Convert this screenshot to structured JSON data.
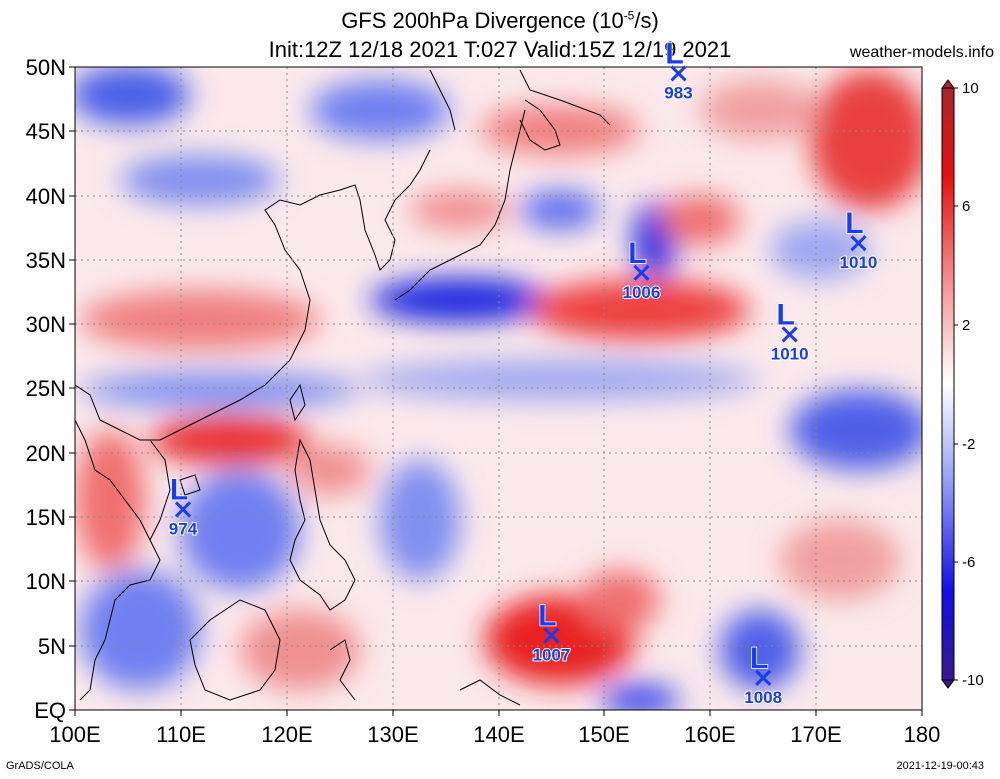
{
  "header": {
    "title_main": "GFS 200hPa Divergence (10",
    "title_exp": "-5",
    "title_unit": "/s)",
    "subtitle": "Init:12Z 12/18 2021 T:027 Valid:15Z 12/19 2021",
    "credit": "weather-models.info"
  },
  "axes": {
    "lat_labels": [
      "50N",
      "45N",
      "40N",
      "35N",
      "30N",
      "25N",
      "20N",
      "15N",
      "10N",
      "5N",
      "EQ"
    ],
    "lon_labels": [
      "100E",
      "110E",
      "120E",
      "130E",
      "140E",
      "150E",
      "160E",
      "170E",
      "180"
    ]
  },
  "colorbar": {
    "labels": [
      "10",
      "6",
      "2",
      "-2",
      "-6",
      "-10"
    ]
  },
  "lows": [
    {
      "letter": "L",
      "pressure": "983",
      "lon": 157.0,
      "lat": 49.5
    },
    {
      "letter": "L",
      "pressure": "1006",
      "lon": 153.5,
      "lat": 34.0
    },
    {
      "letter": "L",
      "pressure": "1010",
      "lon": 167.5,
      "lat": 29.2
    },
    {
      "letter": "L",
      "pressure": "1010",
      "lon": 174.0,
      "lat": 36.3
    },
    {
      "letter": "L",
      "pressure": "974",
      "lon": 110.2,
      "lat": 15.6
    },
    {
      "letter": "L",
      "pressure": "1007",
      "lon": 145.0,
      "lat": 5.8
    },
    {
      "letter": "L",
      "pressure": "1008",
      "lon": 165.0,
      "lat": 2.5
    }
  ],
  "footer": {
    "left": "GrADS/COLA",
    "right": "2021-12-19-00:43"
  },
  "colors": {
    "low_marker": "#1a3cf0",
    "divergence_pos": "#e00000",
    "divergence_neg": "#0010e0"
  }
}
